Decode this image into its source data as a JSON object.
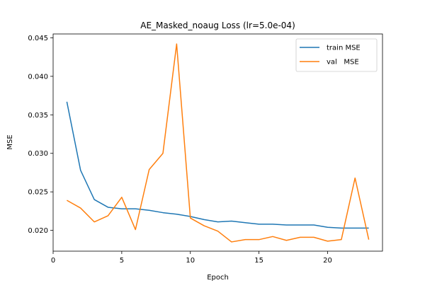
{
  "chart_data": {
    "type": "line",
    "title": "AE_Masked_noaug Loss (lr=5.0e-04)",
    "xlabel": "Epoch",
    "ylabel": "MSE",
    "xlim": [
      0,
      24
    ],
    "ylim": [
      0.0173,
      0.0455
    ],
    "xticks": [
      0,
      5,
      10,
      15,
      20
    ],
    "yticks": [
      0.02,
      0.025,
      0.03,
      0.035,
      0.04,
      0.045
    ],
    "ytick_labels": [
      "0.020",
      "0.025",
      "0.030",
      "0.035",
      "0.040",
      "0.045"
    ],
    "grid": false,
    "legend_position": "top-right",
    "x": [
      1,
      2,
      3,
      4,
      5,
      6,
      7,
      8,
      9,
      10,
      11,
      12,
      13,
      14,
      15,
      16,
      17,
      18,
      19,
      20,
      21,
      22,
      23
    ],
    "series": [
      {
        "name": "train MSE",
        "color": "#1f77b4",
        "values": [
          0.0367,
          0.0278,
          0.024,
          0.023,
          0.0228,
          0.0228,
          0.0226,
          0.0223,
          0.0221,
          0.0218,
          0.0214,
          0.0211,
          0.0212,
          0.021,
          0.0208,
          0.0208,
          0.0207,
          0.0207,
          0.0207,
          0.0204,
          0.0203,
          0.0203,
          0.0203
        ]
      },
      {
        "name": "val   MSE",
        "color": "#ff7f0e",
        "values": [
          0.0239,
          0.0229,
          0.0211,
          0.0219,
          0.0243,
          0.0201,
          0.0279,
          0.03,
          0.0442,
          0.0216,
          0.0206,
          0.0199,
          0.0185,
          0.0188,
          0.0188,
          0.0192,
          0.0187,
          0.0191,
          0.0191,
          0.0186,
          0.0188,
          0.0268,
          0.0188
        ]
      }
    ]
  }
}
